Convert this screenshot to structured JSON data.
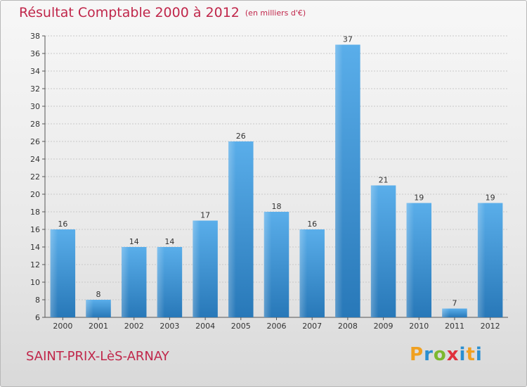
{
  "header": {
    "title": "Résultat Comptable 2000 à 2012",
    "unit": "(en milliers d'€)"
  },
  "footer": {
    "commune": "SAINT-PRIX-LèS-ARNAY",
    "logo": "Proxiti"
  },
  "colors": {
    "bar_light": "#5aaeea",
    "bar_dark": "#2878b8",
    "accent": "#c0264a"
  },
  "chart_data": {
    "type": "bar",
    "title": "Résultat Comptable 2000 à 2012",
    "subtitle": "(en milliers d'€)",
    "xlabel": "",
    "ylabel": "",
    "categories": [
      "2000",
      "2001",
      "2002",
      "2003",
      "2004",
      "2005",
      "2006",
      "2007",
      "2008",
      "2009",
      "2010",
      "2011",
      "2012"
    ],
    "values": [
      16,
      8,
      14,
      14,
      17,
      26,
      18,
      16,
      37,
      21,
      19,
      7,
      19
    ],
    "ylim": [
      6,
      38
    ],
    "yticks": [
      6,
      8,
      10,
      12,
      14,
      16,
      18,
      20,
      22,
      24,
      26,
      28,
      30,
      32,
      34,
      36,
      38
    ],
    "grid": true,
    "legend": "none"
  }
}
